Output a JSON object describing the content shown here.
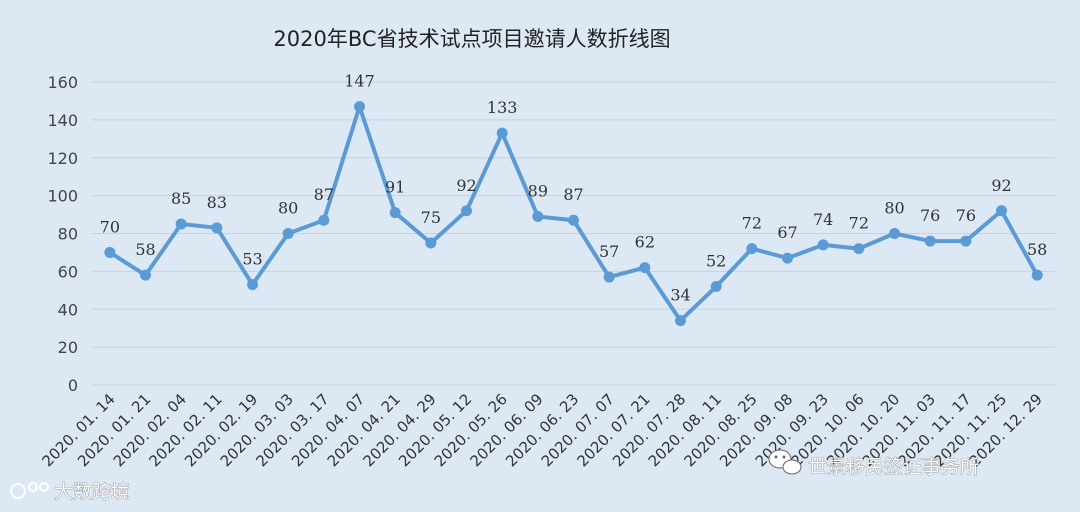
{
  "chart_data": {
    "type": "line",
    "title": "2020年BC省技术试点项目邀请人数折线图",
    "x": [
      "2020. 01. 14",
      "2020. 01. 21",
      "2020. 02. 04",
      "2020. 02. 11",
      "2020. 02. 19",
      "2020. 03. 03",
      "2020. 03. 17",
      "2020. 04. 07",
      "2020. 04. 21",
      "2020. 04. 29",
      "2020. 05. 12",
      "2020. 05. 26",
      "2020. 06. 09",
      "2020. 06. 23",
      "2020. 07. 07",
      "2020. 07. 21",
      "2020. 07. 28",
      "2020. 08. 11",
      "2020. 08. 25",
      "2020. 09. 08",
      "2020. 09. 23",
      "2020. 10. 06",
      "2020. 10. 20",
      "2020. 11. 03",
      "2020. 11. 17",
      "2020. 11. 25",
      "2020. 12. 29"
    ],
    "series": [
      {
        "values": [
          70,
          58,
          85,
          83,
          53,
          80,
          87,
          147,
          91,
          75,
          92,
          133,
          89,
          87,
          57,
          62,
          34,
          52,
          72,
          67,
          74,
          72,
          80,
          76,
          76,
          92,
          58
        ]
      }
    ],
    "ylim": [
      0,
      160
    ],
    "yticks": [
      0,
      20,
      40,
      60,
      80,
      100,
      120,
      140,
      160
    ],
    "xlabel": "",
    "ylabel": "",
    "grid": true,
    "data_labels": true,
    "line_color": "#5b9bd5"
  },
  "watermarks": {
    "left": "大数跨境",
    "right": "世景移民签证事务所"
  }
}
